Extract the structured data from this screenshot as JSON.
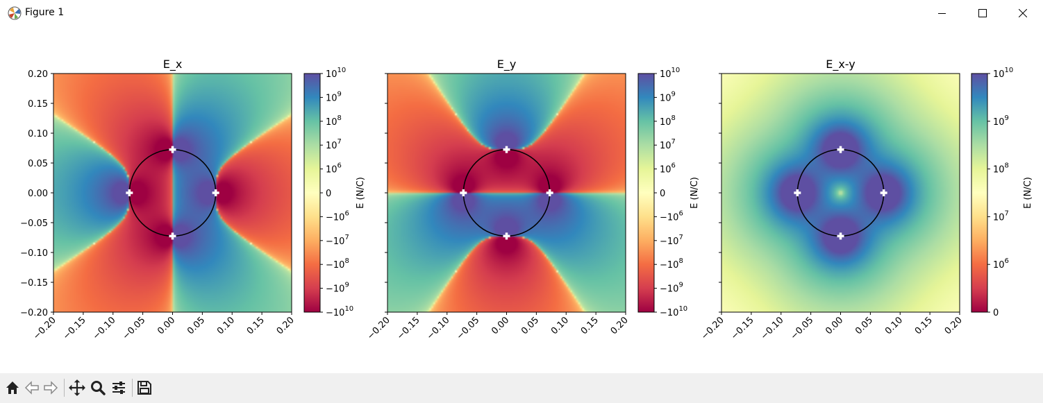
{
  "window": {
    "title": "Figure 1"
  },
  "toolbar": {
    "buttons": [
      {
        "name": "home-icon"
      },
      {
        "name": "back-arrow-icon"
      },
      {
        "name": "forward-arrow-icon"
      },
      {
        "name": "pan-icon"
      },
      {
        "name": "zoom-icon"
      },
      {
        "name": "configure-subplots-icon"
      },
      {
        "name": "save-icon"
      }
    ]
  },
  "colormap": "Spectral",
  "chart_data": [
    {
      "type": "heatmap",
      "title": "E_x",
      "x_ticks": [
        "−0.20",
        "−0.15",
        "−0.10",
        "−0.05",
        "0.00",
        "0.05",
        "0.10",
        "0.15",
        "0.20"
      ],
      "y_ticks": [
        "0.20",
        "0.15",
        "0.10",
        "0.05",
        "0.00",
        "−0.05",
        "−0.10",
        "−0.15",
        "−0.20"
      ],
      "xlim": [
        -0.2,
        0.2
      ],
      "ylim": [
        -0.2,
        0.2
      ],
      "colorbar": {
        "label": "E (N/C)",
        "scale": "symlog",
        "ticks": [
          {
            "base": "10",
            "exp": "10"
          },
          {
            "base": "10",
            "exp": "9"
          },
          {
            "base": "10",
            "exp": "8"
          },
          {
            "base": "10",
            "exp": "7"
          },
          {
            "base": "10",
            "exp": "6"
          },
          {
            "base": "0",
            "exp": ""
          },
          {
            "base": "−10",
            "exp": "6"
          },
          {
            "base": "−10",
            "exp": "7"
          },
          {
            "base": "−10",
            "exp": "8"
          },
          {
            "base": "−10",
            "exp": "9"
          },
          {
            "base": "−10",
            "exp": "10"
          }
        ]
      },
      "circle_radius": 0.0725,
      "markers": [
        [
          0,
          0.0725
        ],
        [
          0,
          -0.0725
        ],
        [
          -0.0725,
          0
        ],
        [
          0.0725,
          0
        ]
      ]
    },
    {
      "type": "heatmap",
      "title": "E_y",
      "x_ticks": [
        "−0.20",
        "−0.15",
        "−0.10",
        "−0.05",
        "0.00",
        "0.05",
        "0.10",
        "0.15",
        "0.20"
      ],
      "y_ticks": [],
      "xlim": [
        -0.2,
        0.2
      ],
      "ylim": [
        -0.2,
        0.2
      ],
      "colorbar": {
        "label": "E (N/C)",
        "scale": "symlog",
        "ticks": [
          {
            "base": "10",
            "exp": "10"
          },
          {
            "base": "10",
            "exp": "9"
          },
          {
            "base": "10",
            "exp": "8"
          },
          {
            "base": "10",
            "exp": "7"
          },
          {
            "base": "10",
            "exp": "6"
          },
          {
            "base": "0",
            "exp": ""
          },
          {
            "base": "−10",
            "exp": "6"
          },
          {
            "base": "−10",
            "exp": "7"
          },
          {
            "base": "−10",
            "exp": "8"
          },
          {
            "base": "−10",
            "exp": "9"
          },
          {
            "base": "−10",
            "exp": "10"
          }
        ]
      },
      "circle_radius": 0.0725,
      "markers": [
        [
          0,
          0.0725
        ],
        [
          0,
          -0.0725
        ],
        [
          -0.0725,
          0
        ],
        [
          0.0725,
          0
        ]
      ]
    },
    {
      "type": "heatmap",
      "title": "E_x-y",
      "x_ticks": [
        "−0.20",
        "−0.15",
        "−0.10",
        "−0.05",
        "0.00",
        "0.05",
        "0.10",
        "0.15",
        "0.20"
      ],
      "y_ticks": [],
      "xlim": [
        -0.2,
        0.2
      ],
      "ylim": [
        -0.2,
        0.2
      ],
      "colorbar": {
        "label": "E (N/C)",
        "scale": "symlog",
        "ticks": [
          {
            "base": "10",
            "exp": "10"
          },
          {
            "base": "10",
            "exp": "9"
          },
          {
            "base": "10",
            "exp": "8"
          },
          {
            "base": "10",
            "exp": "7"
          },
          {
            "base": "10",
            "exp": "6"
          },
          {
            "base": "0",
            "exp": ""
          }
        ]
      },
      "circle_radius": 0.0725,
      "markers": [
        [
          0,
          0.0725
        ],
        [
          0,
          -0.0725
        ],
        [
          -0.0725,
          0
        ],
        [
          0.0725,
          0
        ]
      ]
    }
  ]
}
